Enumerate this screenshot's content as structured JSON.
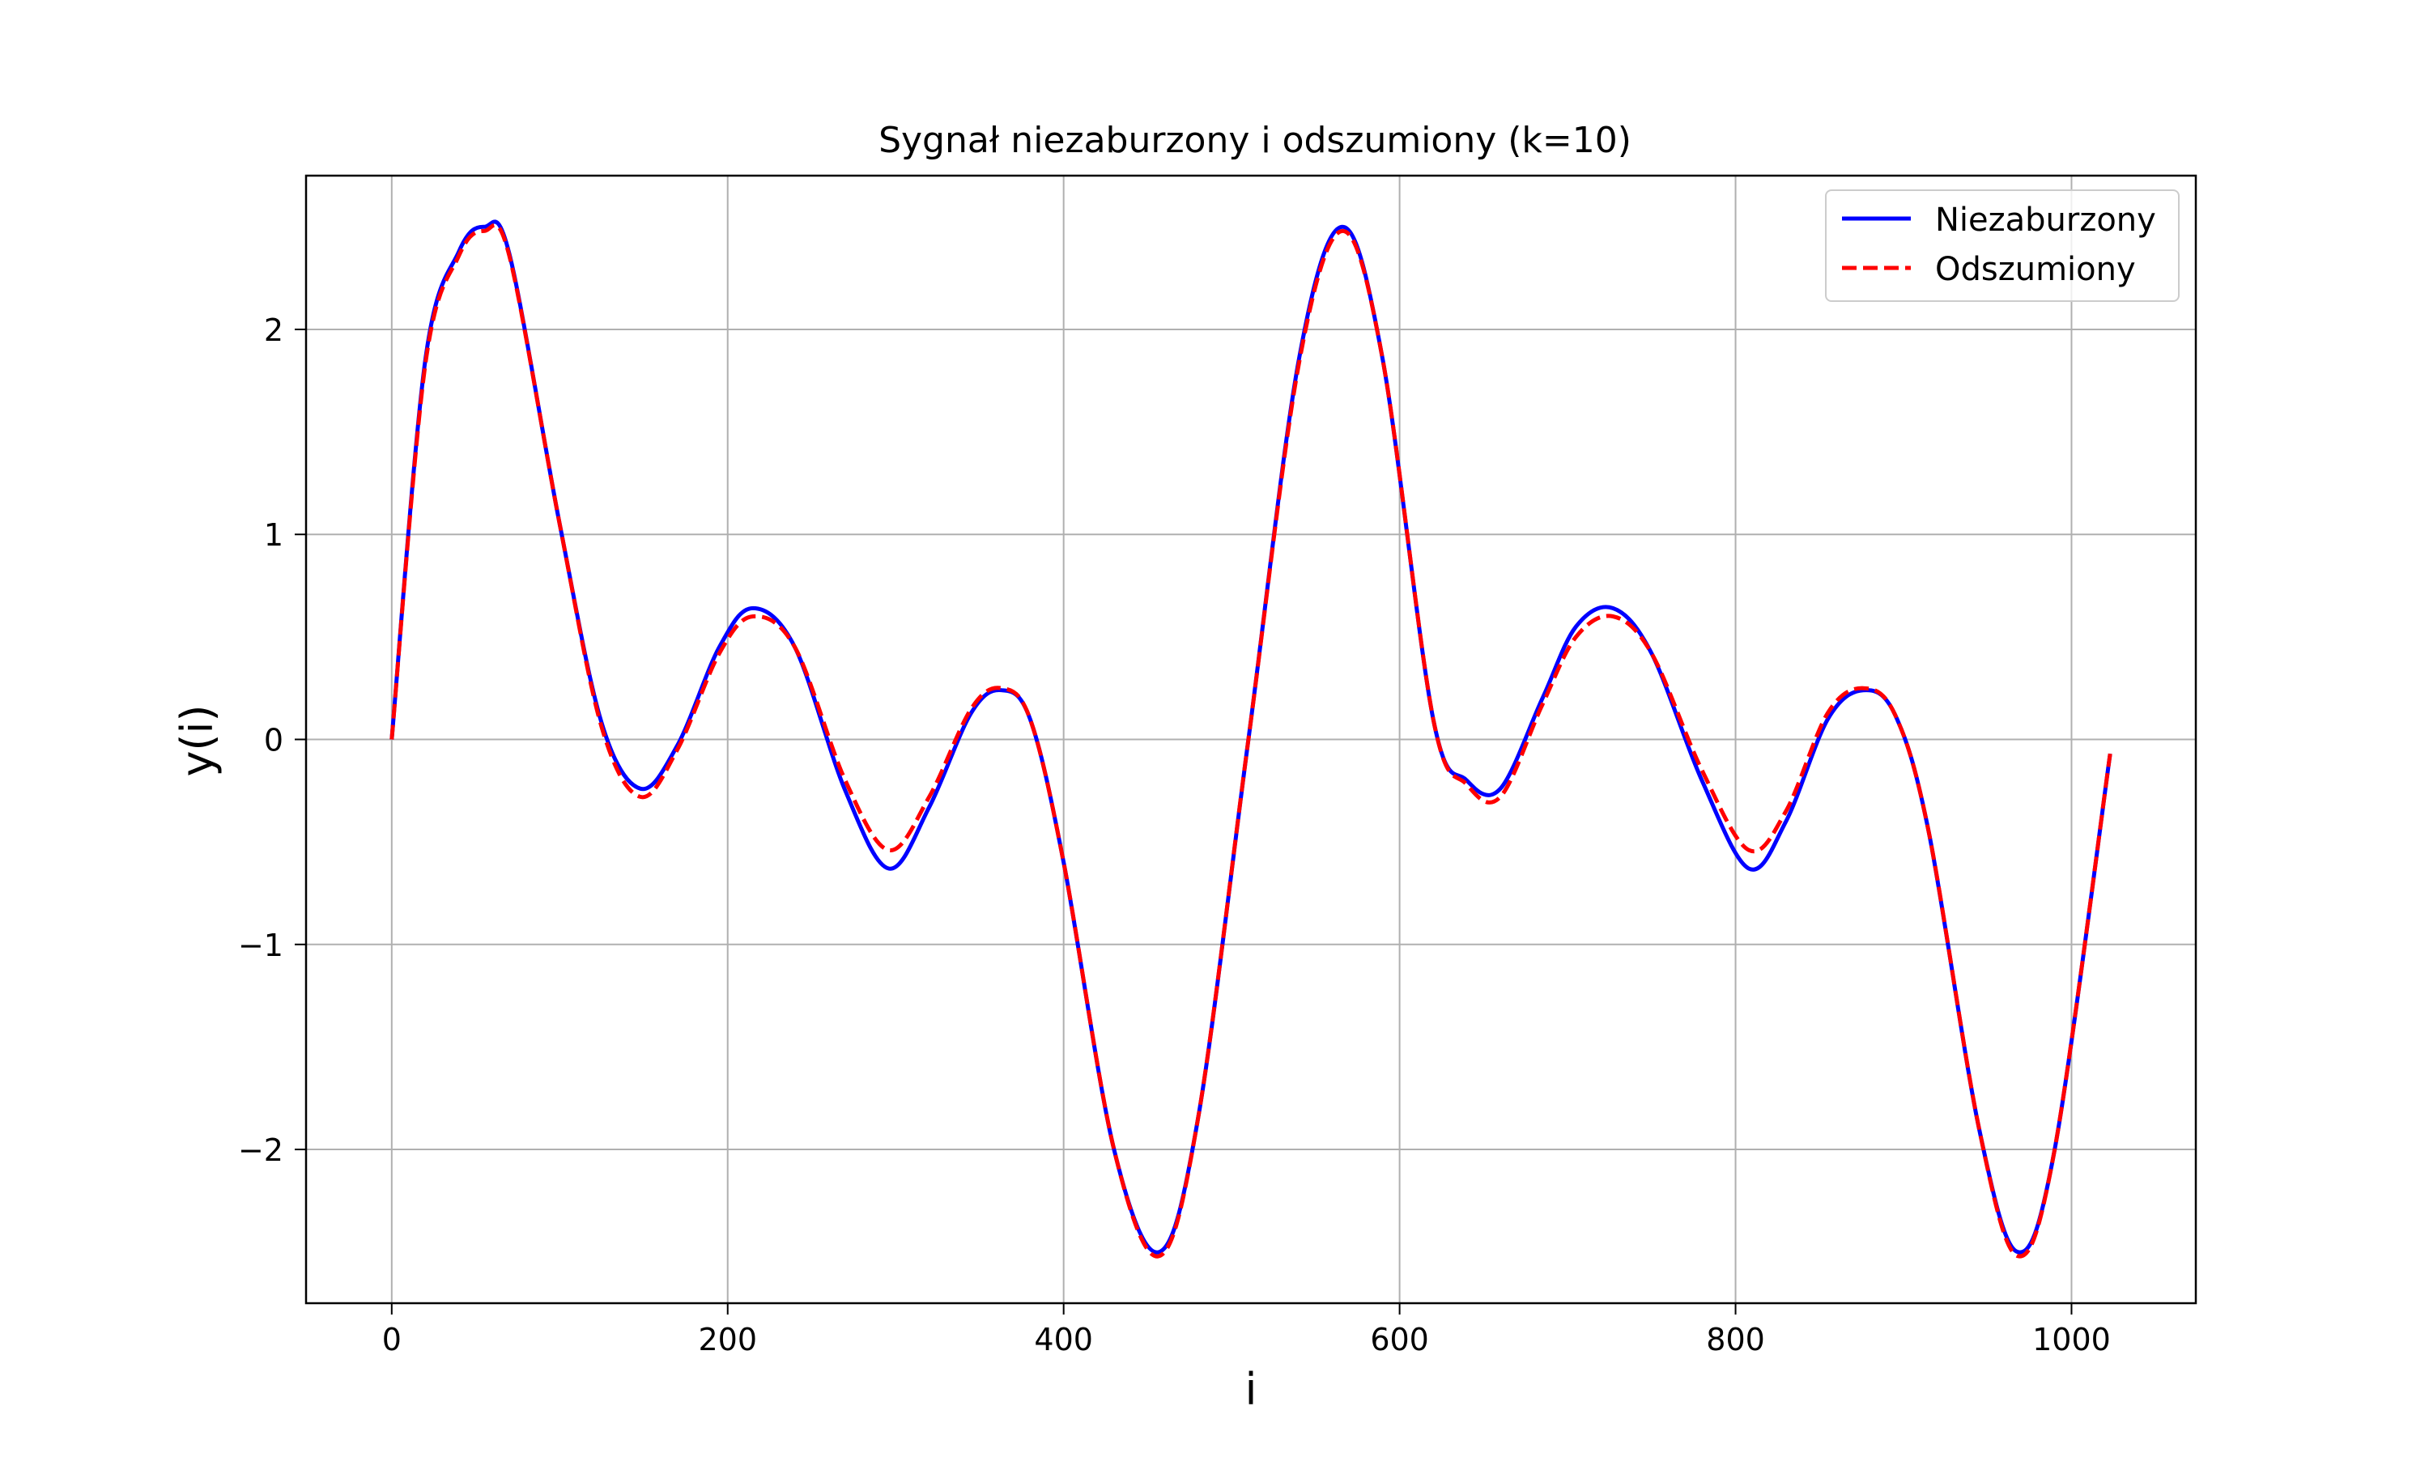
{
  "chart_data": {
    "type": "line",
    "title": "Sygnał niezaburzony i odszumiony (k=10)",
    "xlabel": "i",
    "ylabel": "y(i)",
    "xlim": [
      -51,
      1074
    ],
    "ylim": [
      -2.75,
      2.75
    ],
    "xticks": [
      0,
      200,
      400,
      600,
      800,
      1000
    ],
    "xtick_labels": [
      "0",
      "200",
      "400",
      "600",
      "800",
      "1000"
    ],
    "yticks": [
      -2,
      -1,
      0,
      1,
      2
    ],
    "ytick_labels": [
      "−2",
      "−1",
      "0",
      "1",
      "2"
    ],
    "grid": true,
    "legend_position": "top-right",
    "series": [
      {
        "name": "Niezaburzony",
        "color": "#0000ff",
        "style": "solid",
        "x": [
          0,
          20,
          40,
          55,
          70,
          100,
          125,
          148,
          170,
          195,
          215,
          240,
          270,
          296,
          320,
          345,
          363,
          380,
          400,
          430,
          457,
          480,
          510,
          540,
          566,
          590,
          620,
          640,
          660,
          685,
          705,
          727,
          750,
          780,
          808,
          830,
          855,
          876,
          895,
          915,
          945,
          968,
          990,
          1023
        ],
        "y": [
          0,
          1.85,
          2.38,
          2.5,
          2.37,
          1.05,
          0.08,
          -0.24,
          -0.03,
          0.45,
          0.64,
          0.45,
          -0.25,
          -0.63,
          -0.33,
          0.13,
          0.24,
          0.1,
          -0.6,
          -2.0,
          -2.5,
          -1.85,
          0,
          1.85,
          2.5,
          1.85,
          0.1,
          -0.2,
          -0.24,
          0.2,
          0.55,
          0.64,
          0.42,
          -0.2,
          -0.63,
          -0.4,
          0.1,
          0.24,
          0.12,
          -0.45,
          -1.9,
          -2.5,
          -2.0,
          -0.07
        ]
      },
      {
        "name": "Odszumiony",
        "color": "#ff0000",
        "style": "dashed",
        "x": [
          0,
          20,
          40,
          55,
          70,
          100,
          125,
          148,
          170,
          195,
          215,
          240,
          270,
          296,
          320,
          345,
          363,
          380,
          400,
          430,
          457,
          480,
          510,
          540,
          566,
          590,
          620,
          640,
          660,
          685,
          705,
          727,
          750,
          780,
          808,
          830,
          855,
          876,
          895,
          915,
          945,
          968,
          990,
          1023
        ],
        "y": [
          0,
          1.83,
          2.36,
          2.48,
          2.36,
          1.05,
          0.06,
          -0.28,
          -0.05,
          0.42,
          0.6,
          0.45,
          -0.2,
          -0.54,
          -0.28,
          0.15,
          0.25,
          0.1,
          -0.6,
          -2.0,
          -2.52,
          -1.85,
          0,
          1.83,
          2.48,
          1.85,
          0.1,
          -0.22,
          -0.28,
          0.17,
          0.5,
          0.6,
          0.42,
          -0.15,
          -0.54,
          -0.35,
          0.13,
          0.25,
          0.12,
          -0.45,
          -1.9,
          -2.52,
          -2.0,
          -0.07
        ]
      }
    ]
  }
}
